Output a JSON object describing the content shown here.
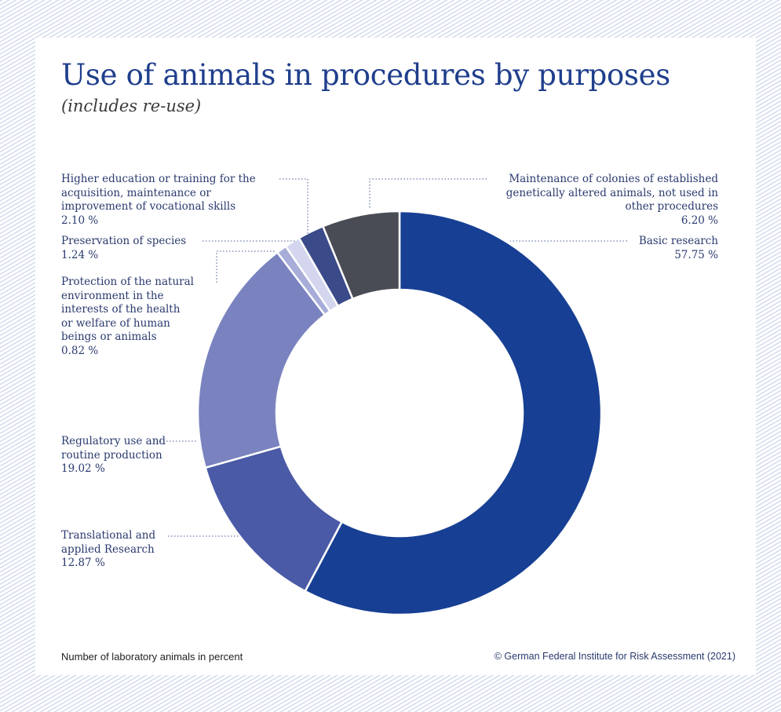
{
  "title": "Use of animals in procedures by purposes",
  "subtitle": "(includes re-use)",
  "footnote": "Number of laboratory animals in percent",
  "source": "© German Federal Institute for Risk Assessment (2021)",
  "chart_data": {
    "type": "pie",
    "title": "Use of animals in procedures by purposes",
    "subtitle": "(includes re-use)",
    "value_unit": "%",
    "slices": [
      {
        "name": "Basic research",
        "value": 57.75,
        "value_label": "57.75 %",
        "color": "#173f93"
      },
      {
        "name": "Translational and applied Research",
        "value": 12.87,
        "value_label": "12.87 %",
        "color": "#4a5aa6"
      },
      {
        "name": "Regulatory use and routine production",
        "value": 19.02,
        "value_label": "19.02 %",
        "color": "#7a83bf"
      },
      {
        "name": "Protection of the natural environment in the interests of the health or welfare of human beings or animals",
        "value": 0.82,
        "value_label": "0.82 %",
        "color": "#a7add8"
      },
      {
        "name": "Preservation of species",
        "value": 1.24,
        "value_label": "1.24 %",
        "color": "#d3d6ee"
      },
      {
        "name": "Higher education or training for the acquisition, maintenance or improvement of vocational skills",
        "value": 2.1,
        "value_label": "2.10 %",
        "color": "#3b4a88"
      },
      {
        "name": "Maintenance of colonies of established genetically altered animals, not used in other procedures",
        "value": 6.2,
        "value_label": "6.20 %",
        "color": "#4a4c55"
      }
    ],
    "labels": {
      "basic": [
        "Basic research",
        "57.75 %"
      ],
      "translational": [
        "Translational and",
        "applied Research",
        "12.87 %"
      ],
      "regulatory": [
        "Regulatory use and",
        "routine production",
        "19.02 %"
      ],
      "protection": [
        "Protection of the natural",
        "environment in the",
        "interests of the health",
        "or welfare of human",
        "beings or animals",
        "0.82 %"
      ],
      "preservation": [
        "Preservation of species",
        "1.24 %"
      ],
      "education": [
        "Higher education or training for the",
        "acquisition, maintenance or",
        "improvement of vocational skills",
        "2.10 %"
      ],
      "maintenance": [
        "Maintenance of colonies of established",
        "genetically altered animals, not used in",
        "other procedures",
        "6.20 %"
      ]
    }
  }
}
